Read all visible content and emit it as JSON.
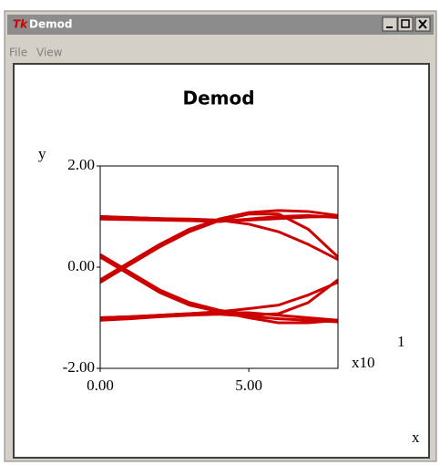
{
  "window": {
    "title": "Demod",
    "menu": [
      "File",
      "View"
    ]
  },
  "chart_data": {
    "type": "line",
    "title": "Demod",
    "x_label": "x",
    "y_label": "y",
    "x_scale_label": "x10",
    "x_scale_exponent": "1",
    "x": [
      0,
      1,
      2,
      3,
      4,
      5,
      6,
      7,
      8
    ],
    "xlim": [
      0,
      8
    ],
    "xticks": [
      {
        "value": 0,
        "label": "0.00"
      },
      {
        "value": 5,
        "label": "5.00"
      }
    ],
    "ylim": [
      -2,
      2
    ],
    "yticks": [
      {
        "value": -2,
        "label": "-2.00"
      },
      {
        "value": 0,
        "label": "0.00"
      },
      {
        "value": 2,
        "label": "2.00"
      }
    ],
    "series": [
      {
        "color": "#cc0000",
        "values": [
          1.0,
          0.98,
          0.96,
          0.93,
          0.92,
          0.93,
          0.96,
          0.99,
          1.0
        ]
      },
      {
        "color": "#cc0000",
        "values": [
          0.95,
          0.94,
          0.93,
          0.92,
          0.9,
          0.95,
          1.0,
          1.02,
          0.98
        ]
      },
      {
        "color": "#cc0000",
        "values": [
          -1.0,
          -0.98,
          -0.95,
          -0.92,
          -0.9,
          -0.9,
          -0.95,
          -1.0,
          -1.05
        ]
      },
      {
        "color": "#cc0000",
        "values": [
          -1.05,
          -1.02,
          -0.98,
          -0.95,
          -0.93,
          -0.97,
          -1.02,
          -1.05,
          -1.08
        ]
      },
      {
        "color": "#cc0000",
        "values": [
          -0.25,
          0.1,
          0.45,
          0.75,
          0.95,
          1.08,
          1.12,
          1.1,
          1.02
        ]
      },
      {
        "color": "#cc0000",
        "values": [
          -0.3,
          0.05,
          0.4,
          0.7,
          0.92,
          1.05,
          1.05,
          0.75,
          0.2
        ]
      },
      {
        "color": "#cc0000",
        "values": [
          0.2,
          -0.15,
          -0.5,
          -0.75,
          -0.88,
          -1.0,
          -1.1,
          -1.1,
          -1.05
        ]
      },
      {
        "color": "#cc0000",
        "values": [
          0.25,
          -0.1,
          -0.45,
          -0.7,
          -0.85,
          -0.95,
          -0.92,
          -0.7,
          -0.25
        ]
      },
      {
        "color": "#cc0000",
        "values": [
          1.0,
          0.98,
          0.96,
          0.95,
          0.93,
          0.85,
          0.7,
          0.45,
          0.15
        ]
      },
      {
        "color": "#cc0000",
        "values": [
          -1.0,
          -0.98,
          -0.95,
          -0.92,
          -0.88,
          -0.82,
          -0.75,
          -0.55,
          -0.3
        ]
      }
    ]
  }
}
